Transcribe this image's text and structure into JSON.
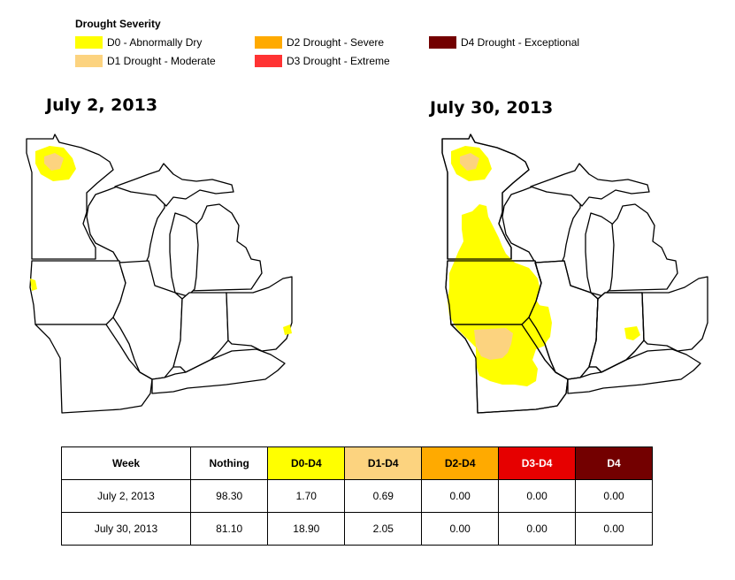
{
  "legend": {
    "title": "Drought Severity",
    "items": [
      {
        "label": "D0 - Abnormally Dry",
        "color": "#ffff00"
      },
      {
        "label": "D1 Drought - Moderate",
        "color": "#fcd37f"
      },
      {
        "label": "D2 Drought - Severe",
        "color": "#ffaa00"
      },
      {
        "label": "D3 Drought - Extreme",
        "color": "#ff3333"
      },
      {
        "label": "D4 Drought - Exceptional",
        "color": "#730000"
      }
    ]
  },
  "maps": [
    {
      "title": "July 2, 2013"
    },
    {
      "title": "July 30, 2013"
    }
  ],
  "table": {
    "headers": [
      "Week",
      "Nothing",
      "D0-D4",
      "D1-D4",
      "D2-D4",
      "D3-D4",
      "D4"
    ],
    "header_colors": [
      "#ffffff",
      "#ffffff",
      "#ffff00",
      "#fcd37f",
      "#ffaa00",
      "#e60000",
      "#730000"
    ],
    "rows": [
      [
        "July 2, 2013",
        "98.30",
        "1.70",
        "0.69",
        "0.00",
        "0.00",
        "0.00"
      ],
      [
        "July 30, 2013",
        "81.10",
        "18.90",
        "2.05",
        "0.00",
        "0.00",
        "0.00"
      ]
    ]
  }
}
